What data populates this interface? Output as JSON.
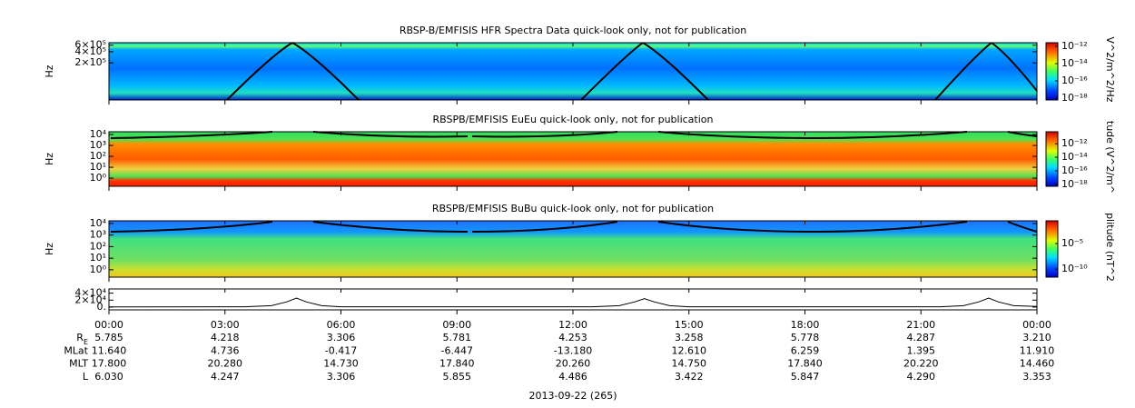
{
  "chart_data": [
    {
      "type": "spectrogram",
      "title": "RBSP-B/EMFISIS  HFR Spectra Data quick-look only, not for publication",
      "ylabel": "Hz",
      "log_scale": true,
      "ylim": [
        20000,
        700000
      ],
      "yticks": [
        {
          "value": 600000,
          "label": "6×10⁵"
        },
        {
          "value": 400000,
          "label": "4×10⁵"
        },
        {
          "value": 200000,
          "label": "2×10⁵"
        }
      ],
      "colorbar": {
        "label": "V^2/m^2/Hz",
        "clim": [
          6.3e-19,
          2.6e-12
        ],
        "ticks": [
          {
            "value": 1e-12,
            "label": "10⁻¹²"
          },
          {
            "value": 1e-14,
            "label": "10⁻¹⁴"
          },
          {
            "value": 1e-16,
            "label": "10⁻¹⁶"
          },
          {
            "value": 1e-18,
            "label": "10⁻¹⁸"
          }
        ]
      }
    },
    {
      "type": "spectrogram",
      "title": "RBSPB/EMFISIS  EuEu quick-look only, not for publication",
      "ylabel": "Hz",
      "log_scale": true,
      "ylim": [
        0.18,
        18000
      ],
      "yticks": [
        {
          "value": 10000,
          "label": "10⁴"
        },
        {
          "value": 1000,
          "label": "10³"
        },
        {
          "value": 100,
          "label": "10²"
        },
        {
          "value": 10,
          "label": "10¹"
        },
        {
          "value": 1,
          "label": "10⁰"
        }
      ],
      "colorbar": {
        "label": "tude (V^2/m^",
        "clim": [
          5e-19,
          6e-11
        ],
        "ticks": [
          {
            "value": 1e-12,
            "label": "10⁻¹²"
          },
          {
            "value": 1e-14,
            "label": "10⁻¹⁴"
          },
          {
            "value": 1e-16,
            "label": "10⁻¹⁶"
          },
          {
            "value": 1e-18,
            "label": "10⁻¹⁸"
          }
        ]
      }
    },
    {
      "type": "spectrogram",
      "title": "RBSPB/EMFISIS  BuBu quick-look only, not for publication",
      "ylabel": "Hz",
      "log_scale": true,
      "ylim": [
        0.23,
        17000
      ],
      "yticks": [
        {
          "value": 10000,
          "label": "10⁴"
        },
        {
          "value": 1000,
          "label": "10³"
        },
        {
          "value": 100,
          "label": "10²"
        },
        {
          "value": 10,
          "label": "10¹"
        },
        {
          "value": 1,
          "label": "10⁰"
        }
      ],
      "colorbar": {
        "label": "plitude (nT^2",
        "clim": [
          2.5e-12,
          0.3
        ],
        "ticks": [
          {
            "value": 1e-05,
            "label": "10⁻⁵"
          },
          {
            "value": 1e-10,
            "label": "10⁻¹⁰"
          }
        ]
      }
    },
    {
      "type": "line",
      "xlabel": "2013-09-22 (265)",
      "color": "#000000",
      "xlim": [
        0,
        24
      ],
      "xticks": [
        {
          "value": 0,
          "label": "00:00"
        },
        {
          "value": 3,
          "label": "03:00"
        },
        {
          "value": 6,
          "label": "06:00"
        },
        {
          "value": 9,
          "label": "09:00"
        },
        {
          "value": 12,
          "label": "12:00"
        },
        {
          "value": 15,
          "label": "15:00"
        },
        {
          "value": 18,
          "label": "18:00"
        },
        {
          "value": 21,
          "label": "21:00"
        },
        {
          "value": 24,
          "label": "00:00"
        }
      ],
      "ylim": [
        -8000,
        52000
      ],
      "yticks": [
        {
          "value": 40000,
          "label": "4×10⁴"
        },
        {
          "value": 20000,
          "label": "2×10⁴"
        },
        {
          "value": 0,
          "label": "0."
        }
      ],
      "x": [
        0,
        3.5,
        4.2,
        4.6,
        4.85,
        5.1,
        5.5,
        6.0,
        12.5,
        13.2,
        13.6,
        13.85,
        14.1,
        14.5,
        15.0,
        21.5,
        22.1,
        22.5,
        22.75,
        23.0,
        23.4,
        24
      ],
      "values": [
        500,
        1000,
        4000,
        15000,
        26000,
        15000,
        4000,
        1000,
        1000,
        4000,
        15000,
        24000,
        15000,
        4000,
        1000,
        1000,
        4000,
        15000,
        26000,
        15000,
        4000,
        2000
      ]
    }
  ],
  "ephemeris": {
    "rows": [
      {
        "label": "R",
        "label_sub": "E",
        "values": [
          "5.785",
          "4.218",
          "3.306",
          "5.781",
          "4.253",
          "3.258",
          "5.778",
          "4.287",
          "3.210"
        ]
      },
      {
        "label": "MLat",
        "values": [
          "11.640",
          "4.736",
          "-0.417",
          "-6.447",
          "-13.180",
          "12.610",
          "6.259",
          "1.395",
          "11.910"
        ]
      },
      {
        "label": "MLT",
        "values": [
          "17.800",
          "20.280",
          "14.730",
          "17.840",
          "20.260",
          "14.750",
          "17.840",
          "20.220",
          "14.460"
        ]
      },
      {
        "label": "L",
        "values": [
          "6.030",
          "4.247",
          "3.306",
          "5.855",
          "4.486",
          "3.422",
          "5.847",
          "4.290",
          "3.353"
        ]
      }
    ]
  }
}
